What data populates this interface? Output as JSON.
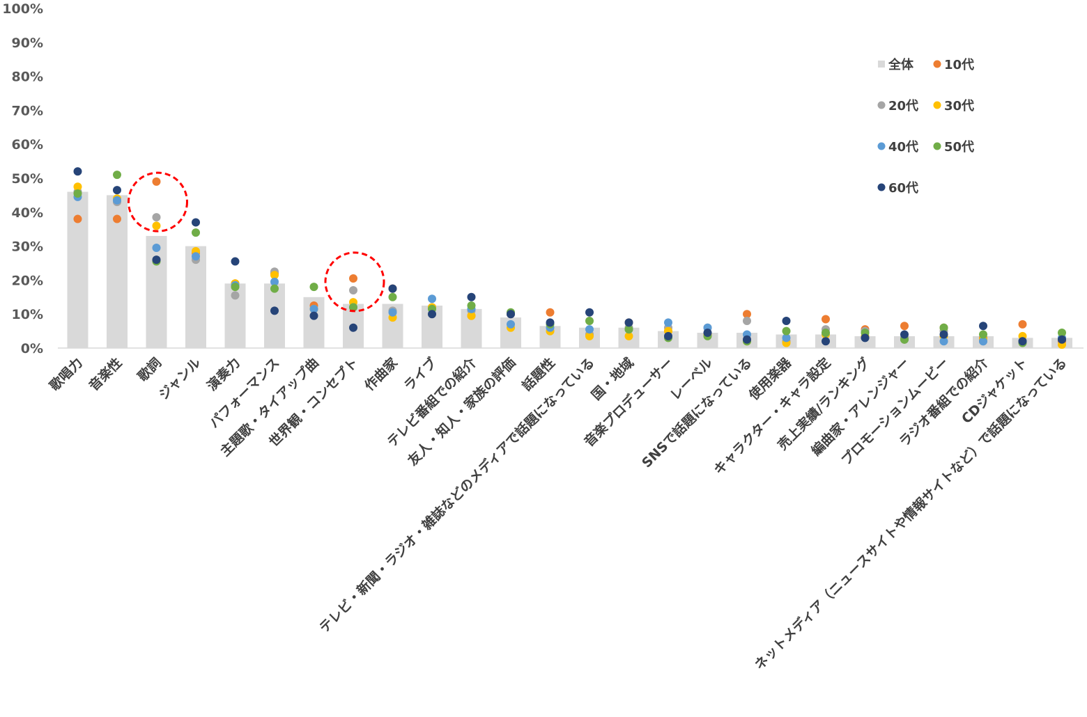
{
  "chart_data": {
    "type": "bar",
    "title": "",
    "xlabel": "",
    "ylabel": "",
    "ylim": [
      0,
      100
    ],
    "y_ticks": [
      "0%",
      "10%",
      "20%",
      "30%",
      "40%",
      "50%",
      "60%",
      "70%",
      "80%",
      "90%",
      "100%"
    ],
    "categories": [
      "歌唱力",
      "音楽性",
      "歌詞",
      "ジャンル",
      "演奏力",
      "パフォーマンス",
      "主題歌・タイアップ曲",
      "世界観・コンセプト",
      "作曲家",
      "ライブ",
      "テレビ番組での紹介",
      "友人・知人・家族の評価",
      "話題性",
      "テレビ・新聞・ラジオ・雑誌などのメディアで話題になっている",
      "国・地域",
      "音楽プロデューサー",
      "レーベル",
      "SNSで話題になっている",
      "使用楽器",
      "キャラクター・キャラ設定",
      "売上実績/ランキング",
      "編曲家・アレンジャー",
      "プロモーションムービー",
      "ラジオ番組での紹介",
      "CDジャケット",
      "ネットメディア（ニュースサイトや情報サイトなど）で話題になっている"
    ],
    "bar_series": {
      "name": "全体",
      "color": "#d9d9d9",
      "values": [
        46,
        45,
        33,
        30,
        19,
        19,
        15,
        13,
        13,
        12.5,
        11.5,
        9,
        6.5,
        6,
        6,
        5,
        4.5,
        4.5,
        4,
        4,
        3.5,
        3.5,
        3.5,
        3.5,
        3,
        3
      ]
    },
    "series": [
      {
        "name": "10代",
        "color": "#ed7d31",
        "values": [
          38,
          38,
          49,
          28,
          19,
          22,
          12.5,
          20.5,
          17.5,
          12,
          9.5,
          10,
          10.5,
          4,
          7.5,
          5,
          4,
          10,
          2,
          8.5,
          5.5,
          6.5,
          6,
          3,
          7,
          2
        ]
      },
      {
        "name": "20代",
        "color": "#a5a5a5",
        "values": [
          46,
          43,
          38.5,
          26,
          15.5,
          22.5,
          11.5,
          17,
          11,
          12,
          11,
          10,
          5,
          4,
          6,
          6,
          6,
          8,
          2,
          5.5,
          5,
          3,
          5,
          2,
          2,
          2.5
        ]
      },
      {
        "name": "30代",
        "color": "#ffc000",
        "values": [
          47.5,
          44,
          36,
          28.5,
          19,
          21.5,
          11.5,
          13.5,
          9,
          12,
          9.5,
          6,
          5,
          3.5,
          3.5,
          5,
          4,
          2,
          1.5,
          4,
          3.5,
          2.5,
          3.5,
          2.5,
          3.5,
          1
        ]
      },
      {
        "name": "40代",
        "color": "#5b9bd5",
        "values": [
          44.5,
          43.5,
          29.5,
          27,
          18.5,
          19.5,
          11.5,
          12,
          10.5,
          14.5,
          11.5,
          7,
          6,
          5.5,
          5.5,
          7.5,
          6,
          4,
          3,
          4.5,
          4.5,
          2.5,
          2,
          2,
          2,
          3
        ]
      },
      {
        "name": "50代",
        "color": "#70ad47",
        "values": [
          45.5,
          51,
          25.5,
          34,
          18,
          17.5,
          18,
          12,
          15,
          11.5,
          12.5,
          10.5,
          7,
          8,
          5.5,
          3,
          3.5,
          2,
          5,
          4.5,
          4.5,
          2.5,
          6,
          4,
          1.5,
          4.5
        ]
      },
      {
        "name": "60代",
        "color": "#264478",
        "values": [
          52,
          46.5,
          26,
          37,
          25.5,
          11,
          9.5,
          6,
          17.5,
          10,
          15,
          10,
          7.5,
          10.5,
          7.5,
          3.5,
          4.5,
          2.5,
          8,
          2,
          3,
          4,
          4,
          6.5,
          2,
          2.5
        ]
      }
    ],
    "legend_position": "top-right",
    "grid": false,
    "annotations": [
      {
        "shape": "dashed-circle",
        "color": "#ff0000",
        "category": "歌詞",
        "y": 43
      },
      {
        "shape": "dashed-circle",
        "color": "#ff0000",
        "category": "世界観・コンセプト",
        "y": 19.5
      }
    ]
  }
}
